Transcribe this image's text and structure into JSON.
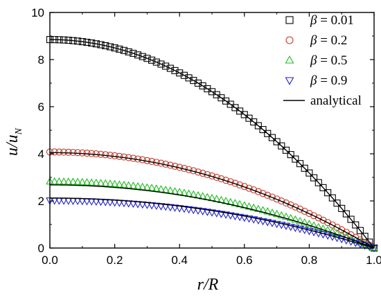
{
  "chart_data": {
    "type": "scatter",
    "title": "",
    "xlabel": "r/R",
    "ylabel_main": "u/u",
    "ylabel_sub": "N",
    "xlim": [
      0.0,
      1.0
    ],
    "ylim": [
      0,
      10
    ],
    "xticks": [
      "0.0",
      "0.2",
      "0.4",
      "0.6",
      "0.8",
      "1.0"
    ],
    "yticks": [
      "0",
      "2",
      "4",
      "6",
      "8",
      "10"
    ],
    "legend_position": "top-right",
    "series": [
      {
        "name": "β = 0.01",
        "greek": "β",
        "label_rest": " = 0.01",
        "marker": "square",
        "color": "#000000",
        "model": {
          "center": 8.85,
          "power": 2
        }
      },
      {
        "name": "β = 0.2",
        "greek": "β",
        "label_rest": " = 0.2",
        "marker": "circle",
        "color": "#c0392b",
        "model": {
          "center": 4.08,
          "power": 2
        }
      },
      {
        "name": "β = 0.5",
        "greek": "β",
        "label_rest": " = 0.5",
        "marker": "triangle-up",
        "color": "#22bb22",
        "model": {
          "center": 2.82,
          "power": 2
        }
      },
      {
        "name": "β = 0.9",
        "greek": "β",
        "label_rest": " = 0.9",
        "marker": "triangle-down",
        "color": "#1f1fcc",
        "model": {
          "center": 2.02,
          "power": 2
        }
      }
    ],
    "analytical": {
      "name": "analytical",
      "color": "#000000",
      "curves": [
        {
          "center": 8.85,
          "power": 2
        },
        {
          "center": 4.05,
          "power": 2
        },
        {
          "center": 2.68,
          "power": 2
        },
        {
          "center": 2.12,
          "power": 2
        }
      ]
    }
  }
}
